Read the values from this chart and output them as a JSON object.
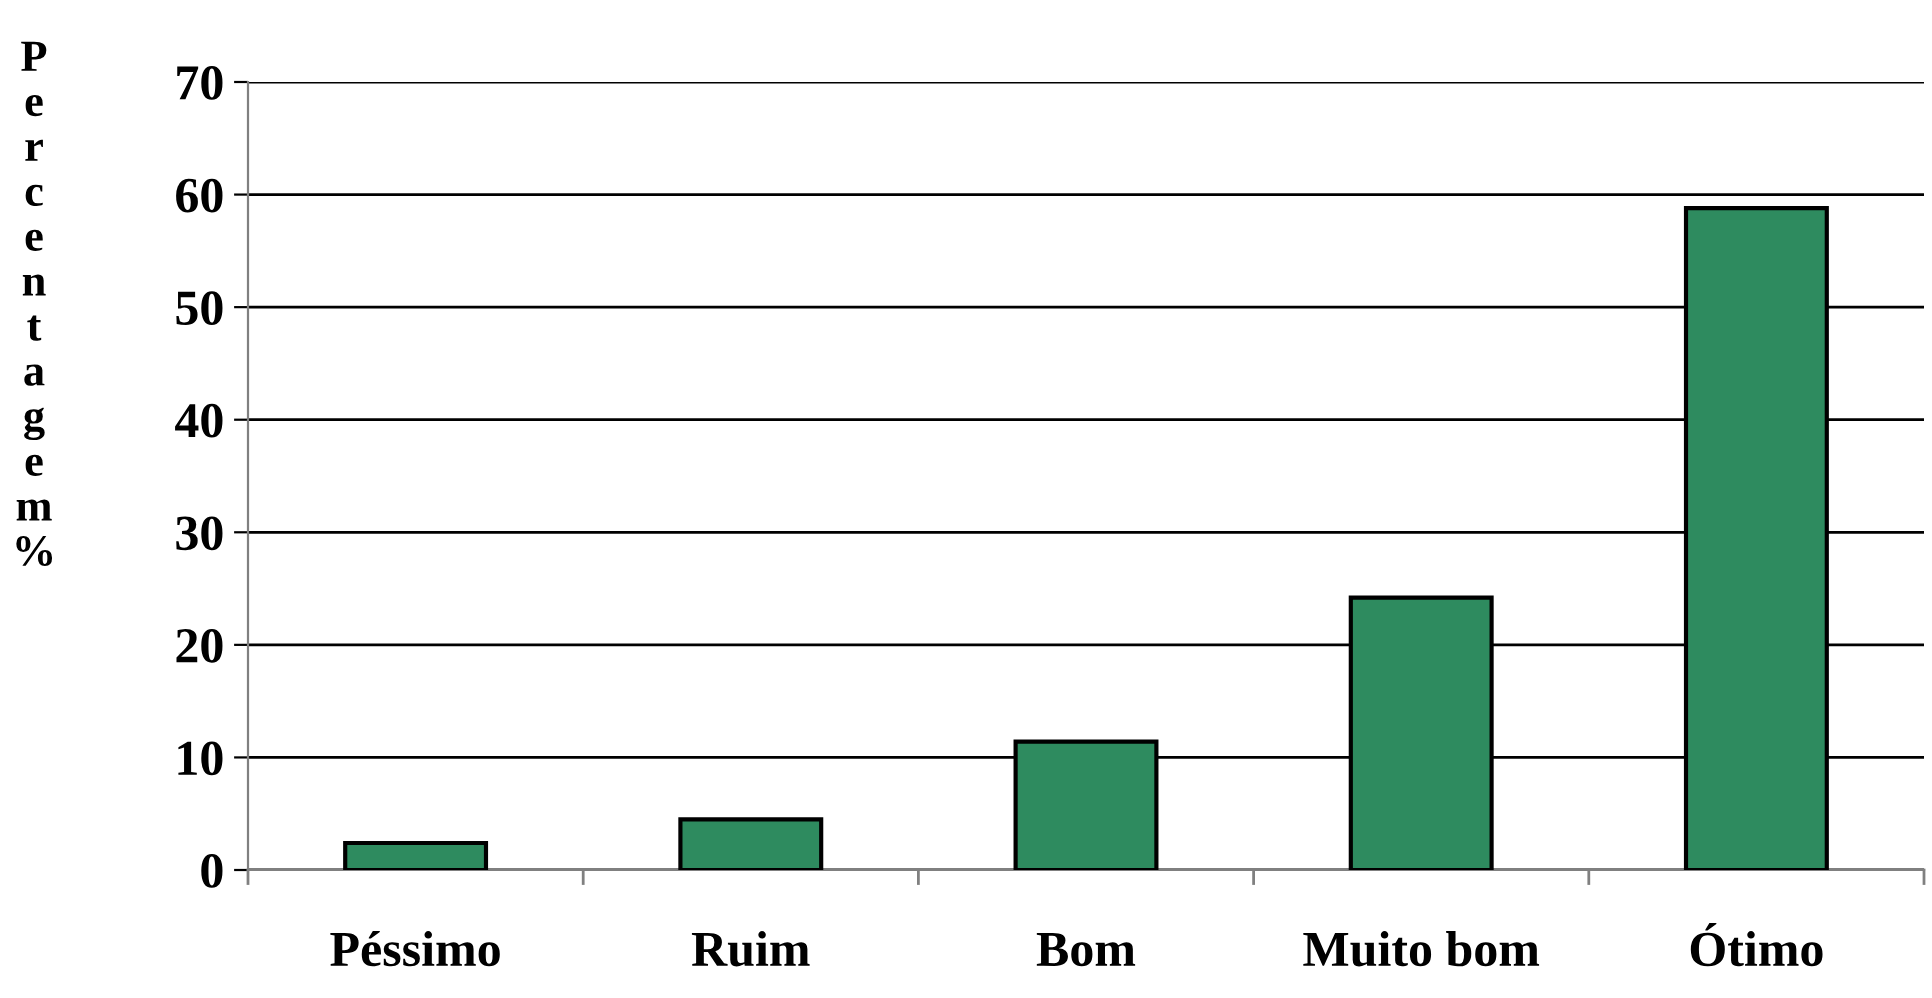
{
  "chart_data": {
    "type": "bar",
    "ylabel": "Percentagem %",
    "categories": [
      "Péssimo",
      "Ruim",
      "Bom",
      "Muito bom",
      "Ótimo"
    ],
    "values": [
      2.4,
      4.5,
      11.4,
      24.2,
      58.8
    ],
    "color": "#2e8b5f",
    "ylim": [
      0,
      70
    ],
    "yticks": [
      0,
      10,
      20,
      30,
      40,
      50,
      60,
      70
    ],
    "grid": "y",
    "legend": false
  }
}
